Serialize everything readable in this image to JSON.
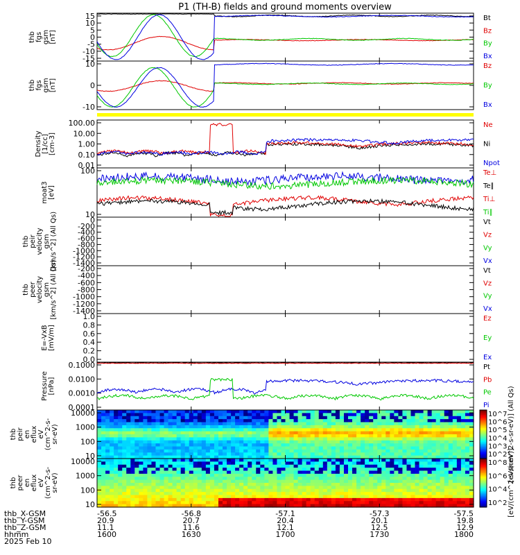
{
  "title": "P1 (TH-B) fields and ground moments overview",
  "colors": {
    "black": "#000000",
    "red": "#e00000",
    "green": "#00c800",
    "blue": "#0000e0",
    "yellow": "#ffff00"
  },
  "chart_data": [
    {
      "type": "line",
      "id": "fgs-gsm",
      "ylabel_lines": [
        "thb",
        "fgs",
        "gsm",
        "[nT]"
      ],
      "ylim": [
        -15,
        17
      ],
      "yticks": [
        "15",
        "10",
        "5",
        "0",
        "-5",
        "-10",
        "-15"
      ],
      "series": [
        {
          "name": "Bt",
          "color": "black"
        },
        {
          "name": "Bz",
          "color": "red"
        },
        {
          "name": "By",
          "color": "green"
        },
        {
          "name": "Bx",
          "color": "blue"
        }
      ]
    },
    {
      "type": "line",
      "id": "fgs-gsm-2",
      "ylabel_lines": [
        "thb",
        "fgs",
        "gsm",
        "[nT]"
      ],
      "ylim": [
        -20,
        17
      ],
      "yticks": [
        "10",
        "0",
        "-10"
      ],
      "series": [
        {
          "name": "Bz",
          "color": "red"
        },
        {
          "name": "By",
          "color": "green"
        },
        {
          "name": "Bx",
          "color": "blue"
        }
      ]
    },
    {
      "type": "line",
      "id": "density",
      "ylabel_lines": [
        "Density",
        "[1/cc]",
        "[cm-3]"
      ],
      "scale": "log",
      "ylim": [
        0.005,
        100
      ],
      "yticks": [
        "100.00",
        "10.00",
        "1.00",
        "0.10",
        "0.01"
      ],
      "series": [
        {
          "name": "Ne",
          "color": "red"
        },
        {
          "name": "Ni",
          "color": "black"
        },
        {
          "name": "Npot",
          "color": "blue"
        }
      ]
    },
    {
      "type": "line",
      "id": "temperature",
      "ylabel_lines": [
        "moat3",
        "[eV]"
      ],
      "scale": "log",
      "ylim": [
        5,
        1000
      ],
      "yticks": [
        "100",
        "10"
      ],
      "series": [
        {
          "name": "Te⊥",
          "color": "red"
        },
        {
          "name": "Te∥",
          "color": "black"
        },
        {
          "name": "Ti⊥",
          "color": "red"
        },
        {
          "name": "Ti∥",
          "color": "green"
        }
      ]
    },
    {
      "type": "line",
      "id": "peir-velocity",
      "ylabel_lines": [
        "thb",
        "peir",
        "velocity",
        "gsm",
        "[km/s^2] (All Qs)"
      ],
      "ylim": [
        -1400,
        0
      ],
      "yticks": [
        "0",
        "-200",
        "-400",
        "-600",
        "-800",
        "-1000",
        "-1200",
        "-1400"
      ],
      "series": [
        {
          "name": "Vt",
          "color": "black"
        },
        {
          "name": "Vz",
          "color": "red"
        },
        {
          "name": "Vy",
          "color": "green"
        },
        {
          "name": "Vx",
          "color": "blue"
        }
      ]
    },
    {
      "type": "line",
      "id": "peer-velocity",
      "ylabel_lines": [
        "thb",
        "peer",
        "velocity",
        "gsm",
        "[km/s^2] (All Qs)"
      ],
      "ylim": [
        -1400,
        0
      ],
      "yticks": [
        "-200",
        "-400",
        "-600",
        "-800",
        "-1000",
        "-1200",
        "-1400"
      ],
      "series": [
        {
          "name": "Vt",
          "color": "black"
        },
        {
          "name": "Vz",
          "color": "red"
        },
        {
          "name": "Vy",
          "color": "green"
        },
        {
          "name": "Vx",
          "color": "blue"
        }
      ]
    },
    {
      "type": "line",
      "id": "efield",
      "ylabel_lines": [
        "E=-VxB",
        "[mV/m]"
      ],
      "ylim": [
        0,
        1
      ],
      "yticks": [
        "1.0",
        "0.8",
        "0.6",
        "0.4",
        "0.2",
        "0.0"
      ],
      "series": [
        {
          "name": "Ez",
          "color": "red"
        },
        {
          "name": "Ey",
          "color": "green"
        },
        {
          "name": "Ex",
          "color": "blue"
        }
      ]
    },
    {
      "type": "line",
      "id": "pressure",
      "ylabel_lines": [
        "Pressure",
        "[nPa]"
      ],
      "scale": "log",
      "ylim": [
        0.0001,
        0.1
      ],
      "yticks": [
        "0.1000",
        "0.0100",
        "0.0010",
        "0.0001"
      ],
      "series": [
        {
          "name": "Pt",
          "color": "black"
        },
        {
          "name": "Pb",
          "color": "red"
        },
        {
          "name": "Pe",
          "color": "green"
        },
        {
          "name": "Pi",
          "color": "blue"
        }
      ]
    },
    {
      "type": "heatmap",
      "id": "peir-eflux",
      "ylabel_lines": [
        "thb",
        "peir",
        "en",
        "eflux",
        "eV",
        "(cm^2-s-",
        "sr-eV)"
      ],
      "yticks": [
        "10000",
        "1000",
        "100",
        "10"
      ],
      "colorbar_ticks": [
        "10^7",
        "10^6",
        "10^5",
        "10^4",
        "10^3",
        "10^2"
      ],
      "colorbar_label": "[eV/(cm^2-s-sr-eV)] (All Qs)"
    },
    {
      "type": "heatmap",
      "id": "peer-eflux",
      "ylabel_lines": [
        "thb",
        "peer",
        "en",
        "eflux",
        "eV",
        "(cm^2-s-",
        "sr-eV)"
      ],
      "yticks": [
        "10000",
        "1000",
        "100",
        "10"
      ],
      "colorbar_ticks": [
        "10^8",
        "10^6",
        "10^4",
        "10^2"
      ],
      "colorbar_label": "[eV/(cm^2-s-sr-eV)]"
    }
  ],
  "xaxis": {
    "rows": [
      {
        "label": "thb_X-GSM",
        "values": [
          "-56.5",
          "-56.8",
          "-57.1",
          "-57.3",
          "-57.5"
        ]
      },
      {
        "label": "thb_Y-GSM",
        "values": [
          "20.9",
          "20.7",
          "20.4",
          "20.1",
          "19.8"
        ]
      },
      {
        "label": "thb_Z-GSM",
        "values": [
          "11.1",
          "11.6",
          "12.1",
          "12.5",
          "12.9"
        ]
      },
      {
        "label": "hhmm",
        "values": [
          "1600",
          "1630",
          "1700",
          "1730",
          "1800"
        ]
      }
    ],
    "date": "2025 Feb 10"
  }
}
